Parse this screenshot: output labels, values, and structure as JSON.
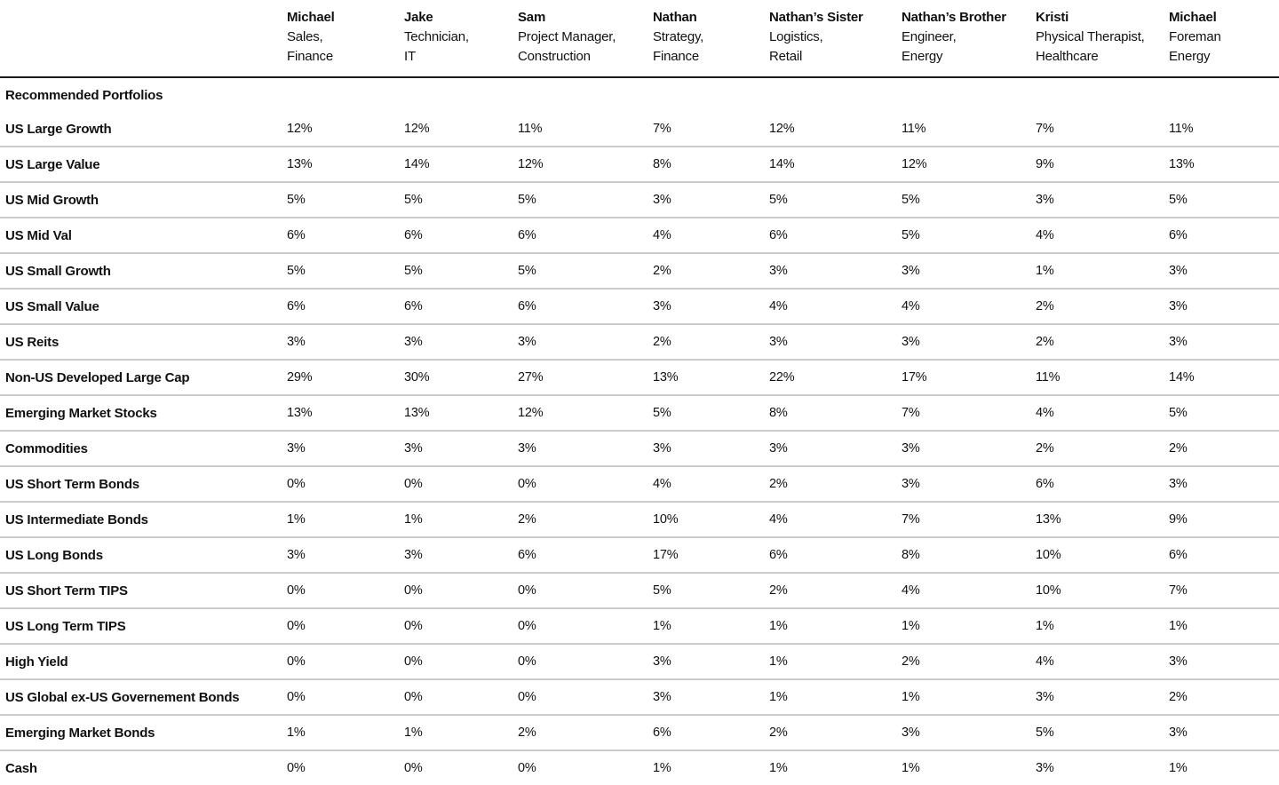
{
  "chart_data": {
    "type": "table",
    "title": "Recommended Portfolios",
    "categories": [
      "US Large Growth",
      "US Large Value",
      "US Mid Growth",
      "US Mid Val",
      "US Small Growth",
      "US Small Value",
      "US Reits",
      "Non-US Developed Large Cap",
      "Emerging Market Stocks",
      "Commodities",
      "US Short Term Bonds",
      "US Intermediate Bonds",
      "US Long Bonds",
      "US Short Term TIPS",
      "US Long Term TIPS",
      "High Yield",
      "US Global ex-US Governement Bonds",
      "Emerging Market Bonds",
      "Cash"
    ],
    "series": [
      {
        "name": "Michael (Sales, Finance)",
        "values": [
          12,
          13,
          5,
          6,
          5,
          6,
          3,
          29,
          13,
          3,
          0,
          1,
          3,
          0,
          0,
          0,
          0,
          1,
          0
        ]
      },
      {
        "name": "Jake (Technician, IT)",
        "values": [
          12,
          14,
          5,
          6,
          5,
          6,
          3,
          30,
          13,
          3,
          0,
          1,
          3,
          0,
          0,
          0,
          0,
          1,
          0
        ]
      },
      {
        "name": "Sam (Project Manager, Construction)",
        "values": [
          11,
          12,
          5,
          6,
          5,
          6,
          3,
          27,
          12,
          3,
          0,
          2,
          6,
          0,
          0,
          0,
          0,
          2,
          0
        ]
      },
      {
        "name": "Nathan (Strategy, Finance)",
        "values": [
          7,
          8,
          3,
          4,
          2,
          3,
          2,
          13,
          5,
          3,
          4,
          10,
          17,
          5,
          1,
          3,
          3,
          6,
          1
        ]
      },
      {
        "name": "Nathan’s Sister (Logistics, Retail)",
        "values": [
          12,
          14,
          5,
          6,
          3,
          4,
          3,
          22,
          8,
          3,
          2,
          4,
          6,
          2,
          1,
          1,
          1,
          2,
          1
        ]
      },
      {
        "name": "Nathan’s Brother (Engineer, Energy)",
        "values": [
          11,
          12,
          5,
          5,
          3,
          4,
          3,
          17,
          7,
          3,
          3,
          7,
          8,
          4,
          1,
          2,
          1,
          3,
          1
        ]
      },
      {
        "name": "Kristi (Physical Therapist, Healthcare)",
        "values": [
          7,
          9,
          3,
          4,
          1,
          2,
          2,
          11,
          4,
          2,
          6,
          13,
          10,
          10,
          1,
          4,
          3,
          5,
          3
        ]
      },
      {
        "name": "Michael (Foreman, Energy)",
        "values": [
          11,
          13,
          5,
          6,
          3,
          3,
          3,
          14,
          5,
          2,
          3,
          9,
          6,
          7,
          1,
          3,
          2,
          3,
          1
        ]
      }
    ],
    "unit": "%"
  },
  "table": {
    "section_title": "Recommended Portfolios",
    "people": [
      {
        "name": "Michael",
        "role_line1": "Sales,",
        "role_line2": "Finance"
      },
      {
        "name": "Jake",
        "role_line1": "Technician,",
        "role_line2": "IT"
      },
      {
        "name": "Sam",
        "role_line1": "Project Manager,",
        "role_line2": "Construction"
      },
      {
        "name": "Nathan",
        "role_line1": "Strategy,",
        "role_line2": "Finance"
      },
      {
        "name": "Nathan’s Sister",
        "role_line1": "Logistics,",
        "role_line2": "Retail"
      },
      {
        "name": "Nathan’s Brother",
        "role_line1": "Engineer,",
        "role_line2": "Energy"
      },
      {
        "name": "Kristi",
        "role_line1": "Physical Therapist,",
        "role_line2": "Healthcare"
      },
      {
        "name": "Michael",
        "role_line1": "Foreman",
        "role_line2": "Energy"
      }
    ],
    "rows": [
      {
        "label": "US Large Growth",
        "values": [
          "12%",
          "12%",
          "11%",
          "7%",
          "12%",
          "11%",
          "7%",
          "11%"
        ]
      },
      {
        "label": "US Large Value",
        "values": [
          "13%",
          "14%",
          "12%",
          "8%",
          "14%",
          "12%",
          "9%",
          "13%"
        ]
      },
      {
        "label": "US Mid Growth",
        "values": [
          "5%",
          "5%",
          "5%",
          "3%",
          "5%",
          "5%",
          "3%",
          "5%"
        ]
      },
      {
        "label": "US Mid Val",
        "values": [
          "6%",
          "6%",
          "6%",
          "4%",
          "6%",
          "5%",
          "4%",
          "6%"
        ]
      },
      {
        "label": "US Small Growth",
        "values": [
          "5%",
          "5%",
          "5%",
          "2%",
          "3%",
          "3%",
          "1%",
          "3%"
        ]
      },
      {
        "label": "US Small Value",
        "values": [
          "6%",
          "6%",
          "6%",
          "3%",
          "4%",
          "4%",
          "2%",
          "3%"
        ]
      },
      {
        "label": "US Reits",
        "values": [
          "3%",
          "3%",
          "3%",
          "2%",
          "3%",
          "3%",
          "2%",
          "3%"
        ]
      },
      {
        "label": "Non-US Developed Large Cap",
        "values": [
          "29%",
          "30%",
          "27%",
          "13%",
          "22%",
          "17%",
          "11%",
          "14%"
        ]
      },
      {
        "label": "Emerging Market Stocks",
        "values": [
          "13%",
          "13%",
          "12%",
          "5%",
          "8%",
          "7%",
          "4%",
          "5%"
        ]
      },
      {
        "label": "Commodities",
        "values": [
          "3%",
          "3%",
          "3%",
          "3%",
          "3%",
          "3%",
          "2%",
          "2%"
        ]
      },
      {
        "label": "US Short Term Bonds",
        "values": [
          "0%",
          "0%",
          "0%",
          "4%",
          "2%",
          "3%",
          "6%",
          "3%"
        ]
      },
      {
        "label": "US Intermediate Bonds",
        "values": [
          "1%",
          "1%",
          "2%",
          "10%",
          "4%",
          "7%",
          "13%",
          "9%"
        ]
      },
      {
        "label": "US Long Bonds",
        "values": [
          "3%",
          "3%",
          "6%",
          "17%",
          "6%",
          "8%",
          "10%",
          "6%"
        ]
      },
      {
        "label": "US Short Term TIPS",
        "values": [
          "0%",
          "0%",
          "0%",
          "5%",
          "2%",
          "4%",
          "10%",
          "7%"
        ]
      },
      {
        "label": "US Long Term TIPS",
        "values": [
          "0%",
          "0%",
          "0%",
          "1%",
          "1%",
          "1%",
          "1%",
          "1%"
        ]
      },
      {
        "label": "High Yield",
        "values": [
          "0%",
          "0%",
          "0%",
          "3%",
          "1%",
          "2%",
          "4%",
          "3%"
        ]
      },
      {
        "label": "US Global ex-US Governement Bonds",
        "values": [
          "0%",
          "0%",
          "0%",
          "3%",
          "1%",
          "1%",
          "3%",
          "2%"
        ]
      },
      {
        "label": "Emerging Market Bonds",
        "values": [
          "1%",
          "1%",
          "2%",
          "6%",
          "2%",
          "3%",
          "5%",
          "3%"
        ]
      },
      {
        "label": "Cash",
        "values": [
          "0%",
          "0%",
          "0%",
          "1%",
          "1%",
          "1%",
          "3%",
          "1%"
        ]
      }
    ],
    "colors": {
      "text": "#111111",
      "header_rule": "#1a1a1a",
      "row_rule": "#cccccc",
      "background": "#ffffff"
    }
  }
}
